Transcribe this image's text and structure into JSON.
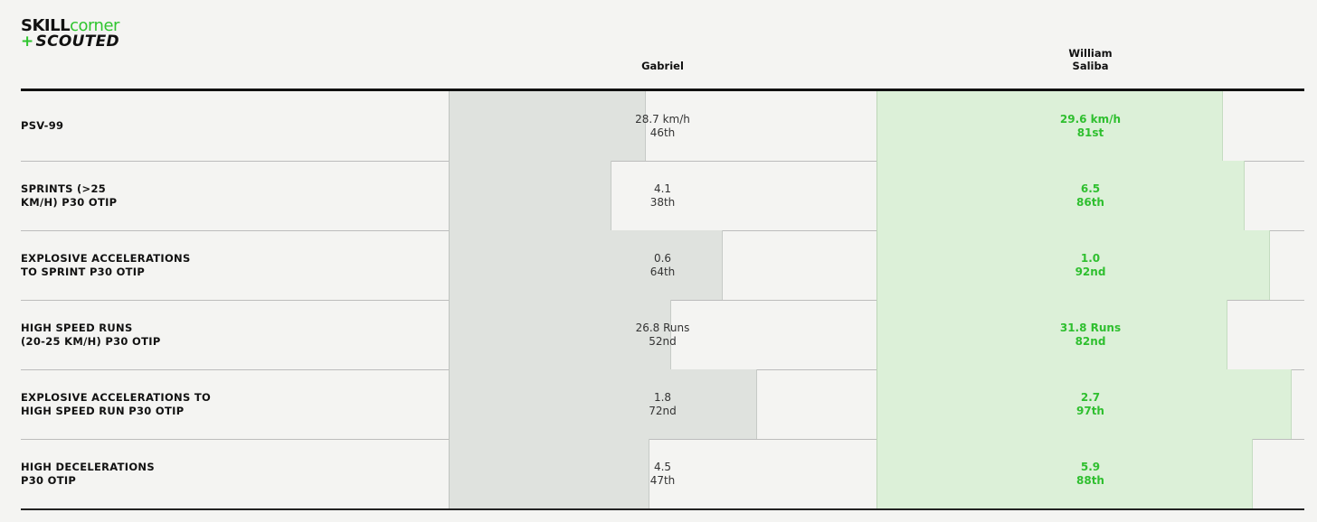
{
  "brand": {
    "part1": "SKILL",
    "part2": "corner",
    "plus": "+",
    "part3": "SCOUTED"
  },
  "players": [
    {
      "name": "Gabriel",
      "name_line1": "Gabriel",
      "name_line2": ""
    },
    {
      "name": "William Saliba",
      "name_line1": "William",
      "name_line2": "Saliba"
    }
  ],
  "colors": {
    "accent": "#2fc52f",
    "player1_bar": "#dfe2de",
    "player2_bar": "#dcf0d8",
    "player2_text": "#2fbf2f"
  },
  "chart_data": {
    "type": "bar",
    "orientation": "horizontal",
    "bar_scale": "percentile",
    "xlim": [
      0,
      100
    ],
    "categories": [
      "PSV-99",
      "SPRINTS (>25 KM/H) P30 OTIP",
      "EXPLOSIVE ACCELERATIONS TO SPRINT P30 OTIP",
      "HIGH SPEED RUNS (20-25 KM/H) P30 OTIP",
      "EXPLOSIVE ACCELERATIONS TO HIGH SPEED RUN P30 OTIP",
      "HIGH DECELERATIONS P30 OTIP"
    ],
    "category_lines": [
      "PSV-99",
      "SPRINTS (>25\nKM/H) P30 OTIP",
      "EXPLOSIVE ACCELERATIONS\nTO SPRINT P30 OTIP",
      "HIGH SPEED RUNS\n(20-25 KM/H) P30 OTIP",
      "EXPLOSIVE ACCELERATIONS TO\nHIGH SPEED RUN P30 OTIP",
      "HIGH DECELERATIONS\nP30 OTIP"
    ],
    "series": [
      {
        "name": "Gabriel",
        "values": [
          46,
          38,
          64,
          52,
          72,
          47
        ],
        "value_labels": [
          "28.7 km/h",
          "4.1",
          "0.6",
          "26.8 Runs",
          "1.8",
          "4.5"
        ],
        "rank_labels": [
          "46th",
          "38th",
          "64th",
          "52nd",
          "72nd",
          "47th"
        ]
      },
      {
        "name": "William Saliba",
        "values": [
          81,
          86,
          92,
          82,
          97,
          88
        ],
        "value_labels": [
          "29.6 km/h",
          "6.5",
          "1.0",
          "31.8 Runs",
          "2.7",
          "5.9"
        ],
        "rank_labels": [
          "81st",
          "86th",
          "92nd",
          "82nd",
          "97th",
          "88th"
        ]
      }
    ],
    "grid": false,
    "legend": "none"
  }
}
